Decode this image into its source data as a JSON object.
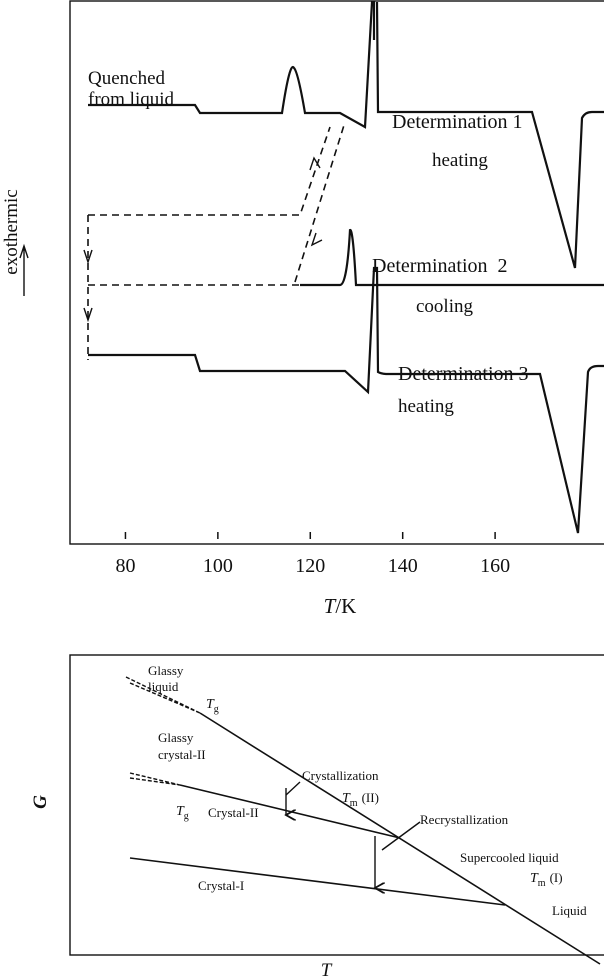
{
  "chart_data": [
    {
      "type": "line",
      "xlabel": {
        "symbol": "T",
        "unit": "/K"
      },
      "ylabel": "exothermic",
      "xlim": [
        68,
        184
      ],
      "xticks": [
        80,
        100,
        120,
        140,
        160
      ],
      "annotations": {
        "quenched": [
          "Quenched",
          "from liquid"
        ],
        "determination_1": "Determination 1",
        "mode_1": "heating",
        "determination_2": "Determination  2",
        "mode_2": "cooling",
        "determination_3": "Determination 3",
        "mode_3": "heating"
      }
    },
    {
      "type": "diagram",
      "xlabel": "T",
      "ylabel": "G",
      "annotations": {
        "glassy_liquid": [
          "Glassy",
          "liquid"
        ],
        "tg_1": {
          "symbol": "T",
          "subscript": "g"
        },
        "glassy_crystal": [
          "Glassy",
          "crystal-II"
        ],
        "crystallization": "Crystallization",
        "tg_2": {
          "symbol": "T",
          "subscript": "g"
        },
        "crystal_2": "Crystal-II",
        "tm_2": {
          "symbol": "T",
          "subscript": "m",
          "suffix": "(II)"
        },
        "recrystallization": "Recrystallization",
        "supercooled": "Supercooled liquid",
        "crystal_1": "Crystal-I",
        "tm_1": {
          "symbol": "T",
          "subscript": "m",
          "suffix": "(I)"
        },
        "liquid": "Liquid"
      }
    }
  ]
}
